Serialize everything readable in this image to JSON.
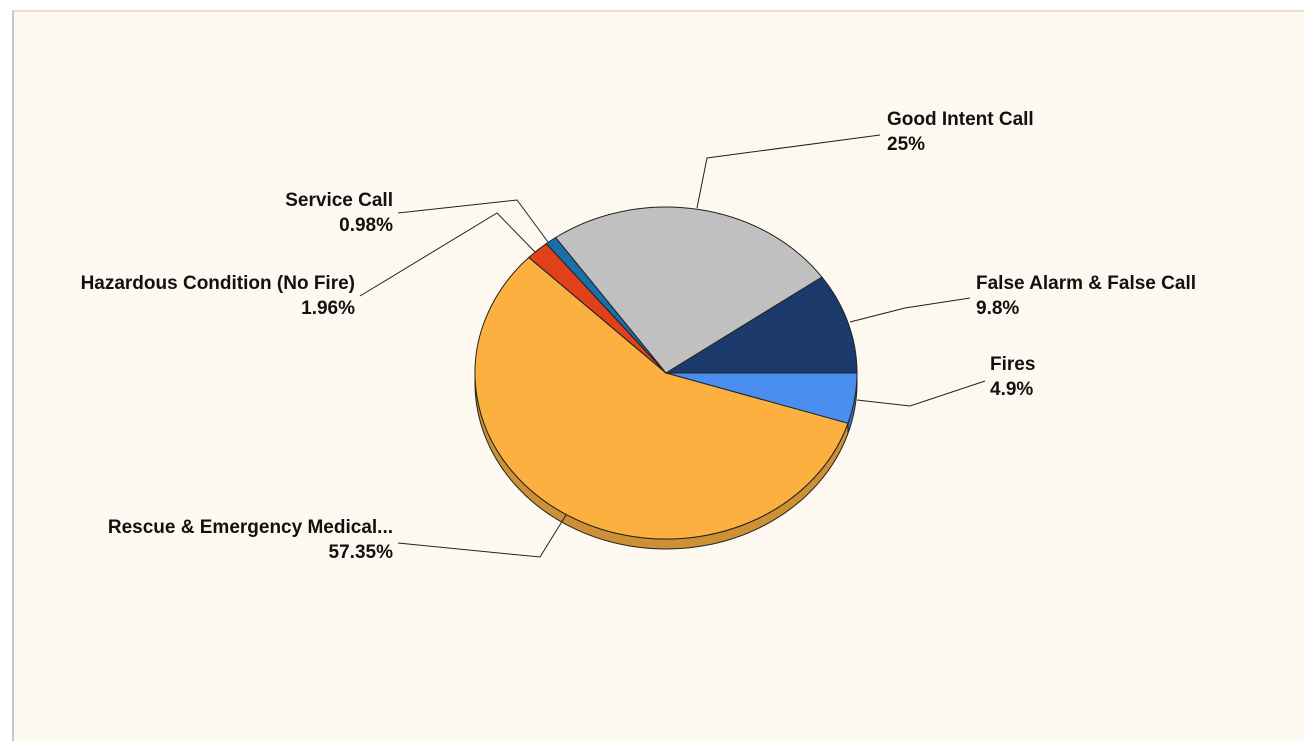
{
  "chart_data": {
    "type": "pie",
    "categories": [
      "Fires",
      "Rescue & Emergency Medical...",
      "Hazardous Condition (No Fire)",
      "Service Call",
      "Good Intent Call",
      "False Alarm & False Call"
    ],
    "values": [
      4.9,
      57.35,
      1.96,
      0.98,
      25,
      9.8
    ],
    "value_labels": [
      "4.9%",
      "57.35%",
      "1.96%",
      "0.98%",
      "25%",
      "9.8%"
    ],
    "colors": [
      "#4a8ef0",
      "#fbb040",
      "#e0401a",
      "#1a6fa8",
      "#c0c0c0",
      "#1c3a6b"
    ]
  }
}
